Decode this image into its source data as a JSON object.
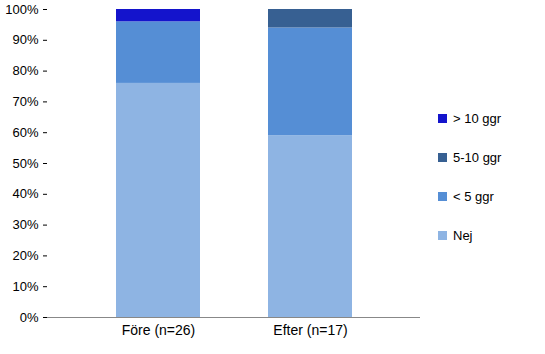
{
  "chart_data": {
    "type": "bar",
    "stacked": true,
    "categories": [
      "Före (n=26)",
      "Efter (n=17)"
    ],
    "series": [
      {
        "name": "Nej",
        "color": "#8eb4e3",
        "values": [
          76,
          59
        ]
      },
      {
        "name": "< 5 ggr",
        "color": "#558ed5",
        "values": [
          20,
          35
        ]
      },
      {
        "name": "5-10 ggr",
        "color": "#376092",
        "values": [
          0,
          6
        ]
      },
      {
        "name": "> 10 ggr",
        "color": "#1414cc",
        "values": [
          4,
          0
        ]
      }
    ],
    "ylim": [
      0,
      100
    ],
    "yticks": [
      {
        "value": 0,
        "label": "0%"
      },
      {
        "value": 10,
        "label": "10%"
      },
      {
        "value": 20,
        "label": "20%"
      },
      {
        "value": 30,
        "label": "30%"
      },
      {
        "value": 40,
        "label": "40%"
      },
      {
        "value": 50,
        "label": "50%"
      },
      {
        "value": 60,
        "label": "60%"
      },
      {
        "value": 70,
        "label": "70%"
      },
      {
        "value": 80,
        "label": "80%"
      },
      {
        "value": 90,
        "label": "90%"
      },
      {
        "value": 100,
        "label": "100%"
      }
    ],
    "grid": false,
    "legend": "right"
  }
}
